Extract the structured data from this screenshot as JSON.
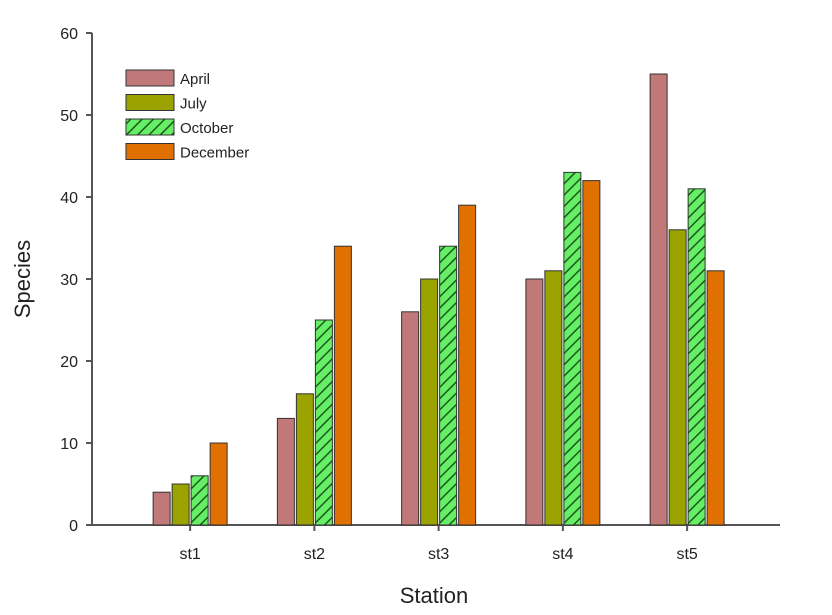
{
  "chart_data": {
    "type": "bar",
    "title": "",
    "xlabel": "Station",
    "ylabel": "Species",
    "ylim": [
      0,
      60
    ],
    "yticks": [
      0,
      10,
      20,
      30,
      40,
      50,
      60
    ],
    "categories": [
      "st1",
      "st2",
      "st3",
      "st4",
      "st5"
    ],
    "series": [
      {
        "name": "April",
        "values": [
          4,
          13,
          26,
          30,
          55
        ],
        "color": "#c07878",
        "pattern": "solid"
      },
      {
        "name": "July",
        "values": [
          5,
          16,
          30,
          31,
          36
        ],
        "color": "#9aa300",
        "pattern": "solid"
      },
      {
        "name": "October",
        "values": [
          6,
          25,
          34,
          43,
          41
        ],
        "color": "#66ee66",
        "pattern": "hatched"
      },
      {
        "name": "December",
        "values": [
          10,
          34,
          39,
          42,
          31
        ],
        "color": "#e07000",
        "pattern": "solid"
      }
    ],
    "grid": false,
    "legend_position": "top-left"
  }
}
